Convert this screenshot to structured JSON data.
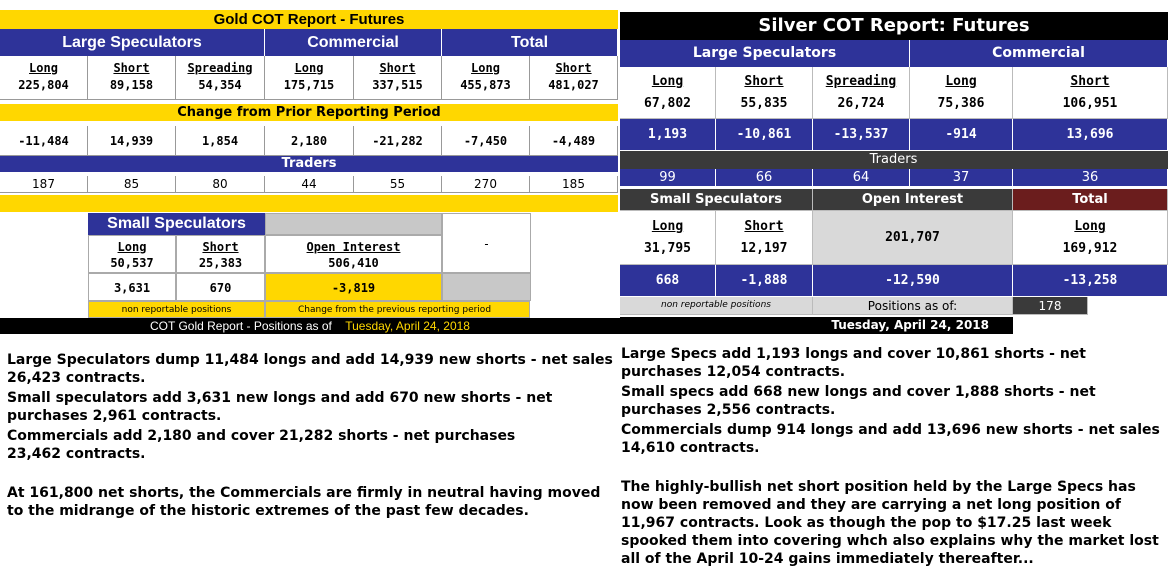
{
  "gold": {
    "title": "Gold COT Report - Futures",
    "groups": [
      "Large Speculators",
      "Commercial",
      "Total"
    ],
    "columns": [
      "Long",
      "Short",
      "Spreading",
      "Long",
      "Short",
      "Long",
      "Short"
    ],
    "positions": [
      "225,804",
      "89,158",
      "54,354",
      "175,715",
      "337,515",
      "455,873",
      "481,027"
    ],
    "change_band": "Change from Prior Reporting Period",
    "changes": [
      "-11,484",
      "14,939",
      "1,854",
      "2,180",
      "-21,282",
      "-7,450",
      "-4,489"
    ],
    "traders_band": "Traders",
    "traders": [
      "187",
      "85",
      "80",
      "44",
      "55",
      "270",
      "185"
    ],
    "small_specs": {
      "title": "Small Speculators",
      "long_label": "Long",
      "short_label": "Short",
      "long": "50,537",
      "short": "25,383",
      "long_change": "3,631",
      "short_change": "670",
      "note": "non reportable positions"
    },
    "open_interest": {
      "label": "Open Interest",
      "value": "506,410",
      "change": "-3,819",
      "note": "Change from the previous reporting period"
    },
    "dash": "-",
    "footer_prefix": "COT Gold Report - Positions as of",
    "footer_date": "Tuesday, April 24, 2018"
  },
  "silver": {
    "title": "Silver  COT Report: Futures",
    "groups": [
      "Large Speculators",
      "Commercial"
    ],
    "columns": [
      "Long",
      "Short",
      "Spreading",
      "Long",
      "Short"
    ],
    "positions": [
      "67,802",
      "55,835",
      "26,724",
      "75,386",
      "106,951"
    ],
    "changes": [
      "1,193",
      "-10,861",
      "-13,537",
      "-914",
      "13,696"
    ],
    "traders_band": "Traders",
    "traders": [
      "99",
      "66",
      "64",
      "37",
      "36"
    ],
    "small_specs_label": "Small Speculators",
    "open_interest_label": "Open Interest",
    "total_label": "Total",
    "small_long_label": "Long",
    "small_short_label": "Short",
    "total_long_label": "Long",
    "small_long": "31,795",
    "small_short": "12,197",
    "open_interest": "201,707",
    "total_long": "169,912",
    "small_long_change": "668",
    "small_short_change": "-1,888",
    "open_interest_change": "-12,590",
    "total_long_change": "-13,258",
    "note": "non reportable positions",
    "positions_as_of": "Positions as of:",
    "total_traders": "178",
    "date": "Tuesday, April 24, 2018"
  },
  "comments": {
    "gold": [
      "Large Speculators dump 11,484 longs and add 14,939 new shorts - net sales 26,423 contracts.",
      "Small speculators add 3,631 new longs and add 670 new shorts - net purchases 2,961 contracts.",
      "Commercials add 2,180 and cover 21,282 shorts - net purchases 23,462 contracts.",
      "At 161,800 net shorts, the Commercials are firmly in neutral having moved to the midrange of the historic extremes of the past few decades."
    ],
    "silver": [
      "Large Specs add 1,193 longs and cover 10,861 shorts - net purchases 12,054 contracts.",
      "Small specs add 668 new longs and cover 1,888 shorts - net purchases 2,556 contracts.",
      "Commercials dump 914 longs and add 13,696 new shorts - net sales 14,610 contracts.",
      "The highly-bullish net short position held by the Large Specs has now been removed and they are carrying a net long position of 11,967 contracts. Look as though the pop to $17.25 last week spooked them into covering whch also explains why the market lost all of the April 10-24 gains immediately thereafter..."
    ]
  }
}
